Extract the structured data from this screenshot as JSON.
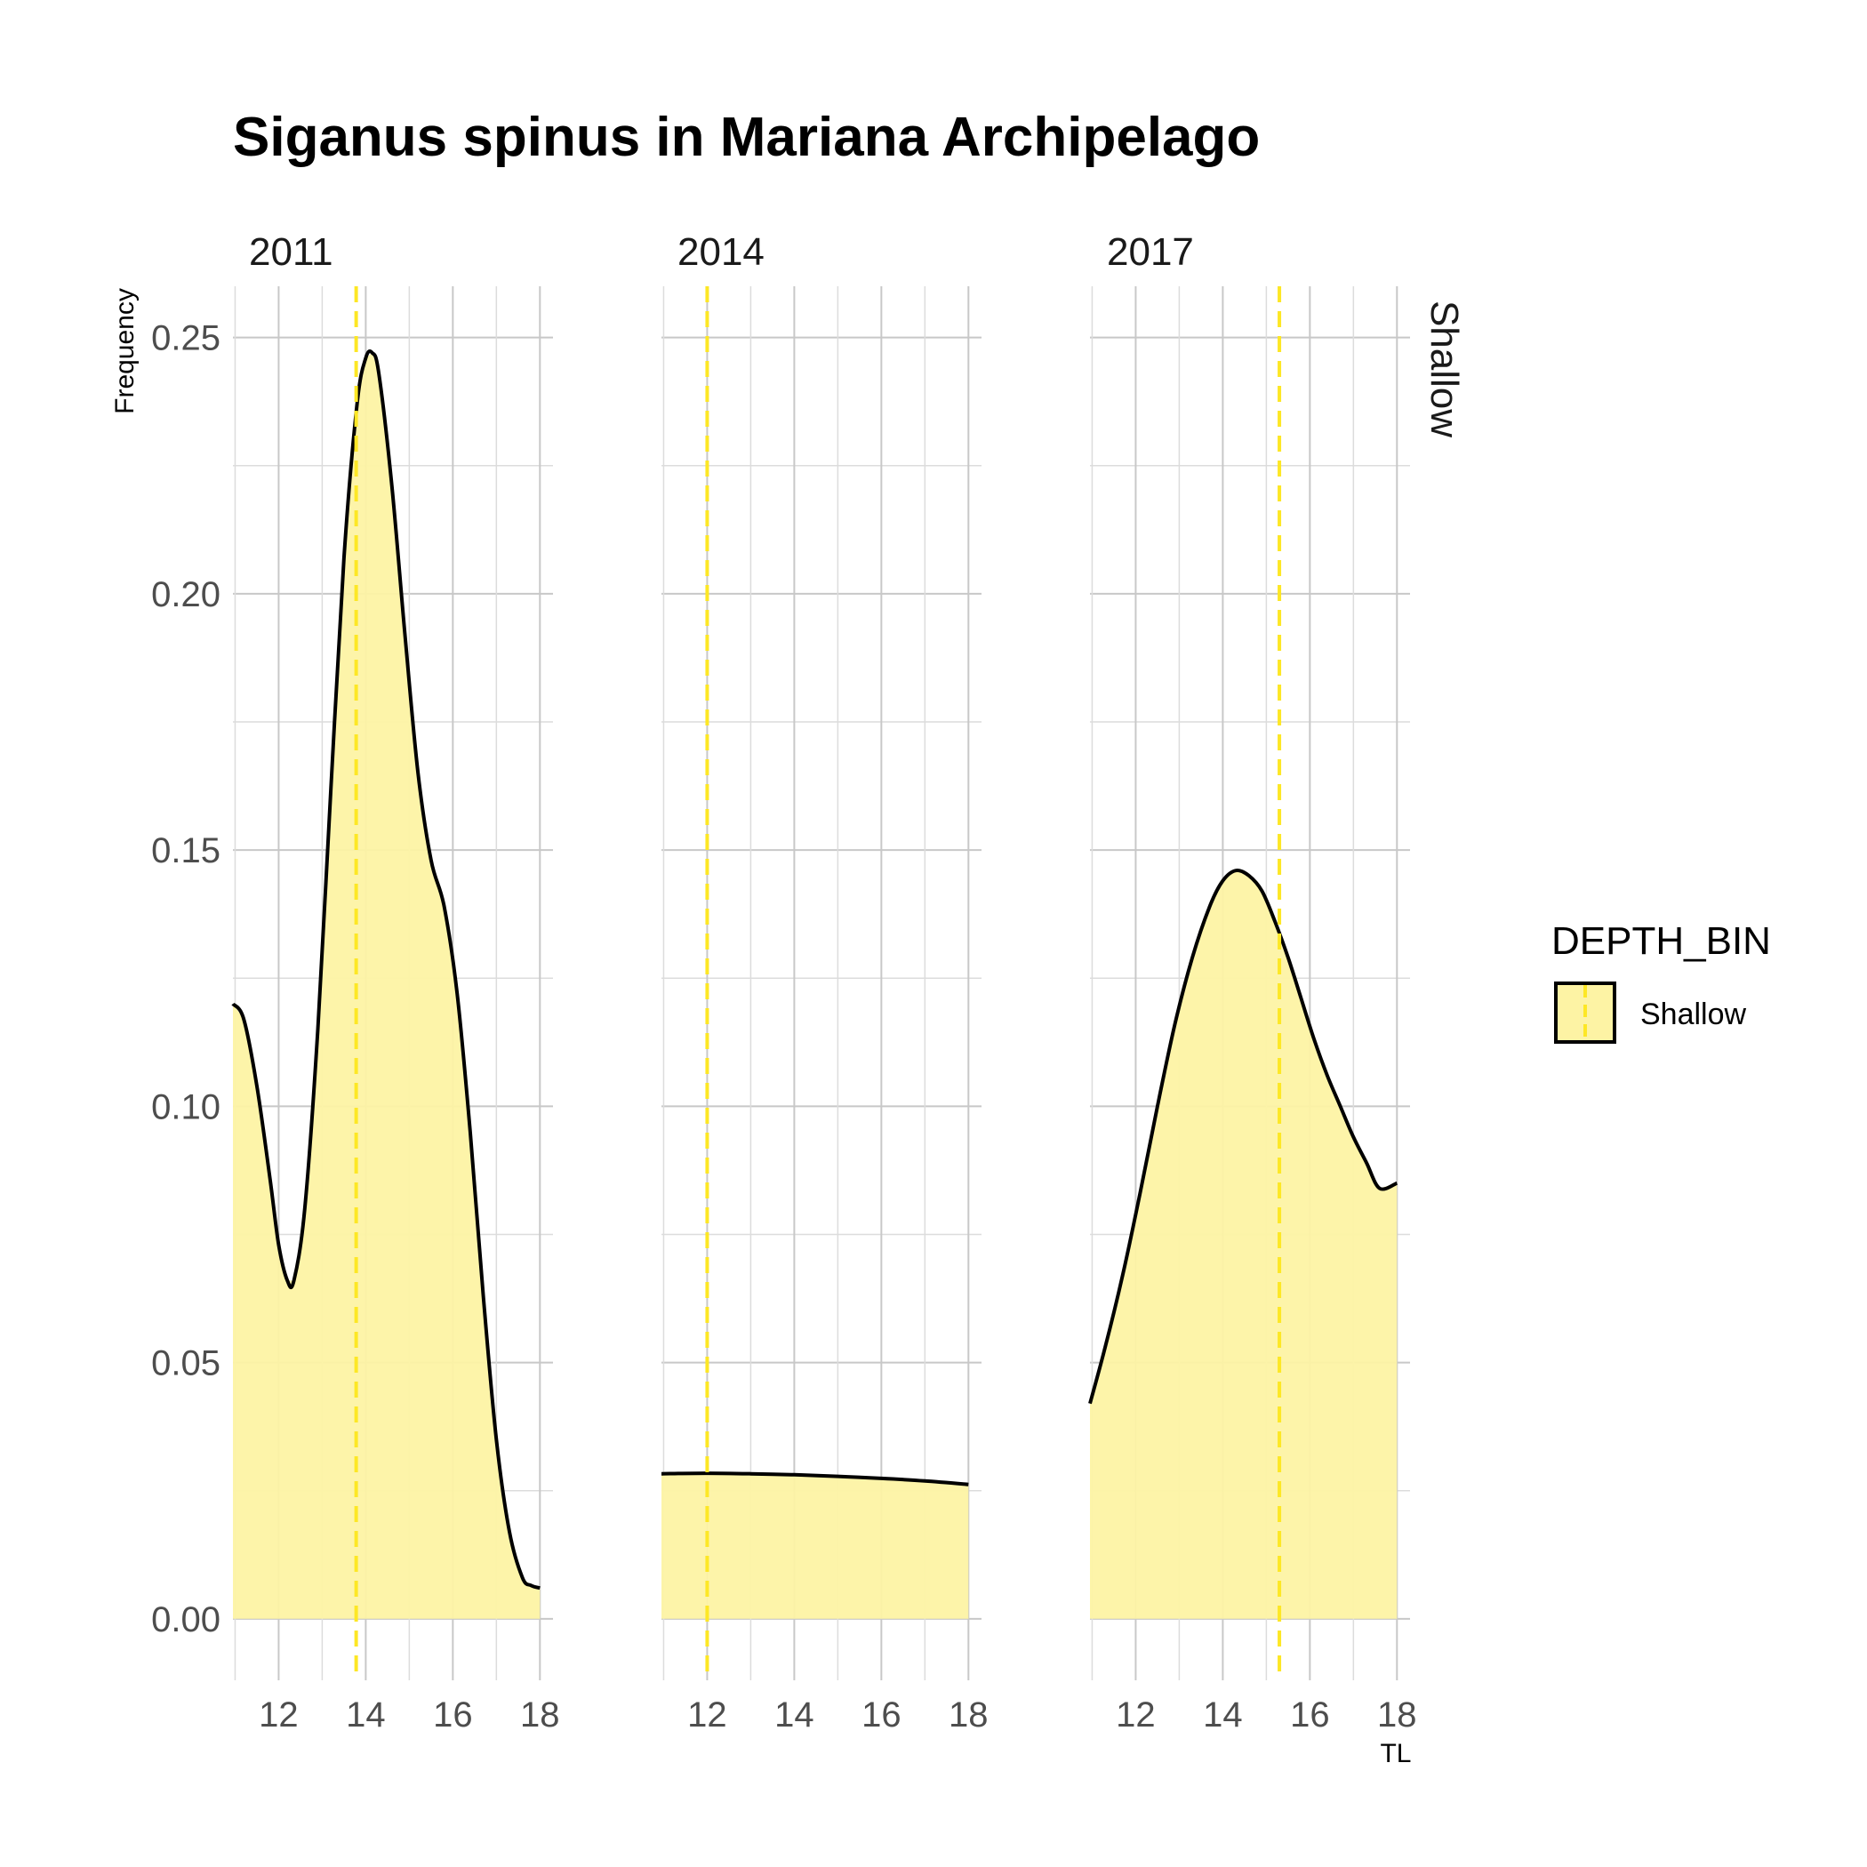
{
  "chart_data": {
    "type": "area",
    "title": "Siganus spinus in Mariana Archipelago",
    "xlabel": "TL",
    "ylabel": "Frequency",
    "row_strip": "Shallow",
    "xlim": [
      10.95,
      18.3
    ],
    "ylim": [
      -0.012,
      0.26
    ],
    "x_ticks": [
      12,
      14,
      16,
      18
    ],
    "y_ticks": [
      "0.00",
      "0.05",
      "0.10",
      "0.15",
      "0.20",
      "0.25"
    ],
    "y_tick_values": [
      0,
      0.05,
      0.1,
      0.15,
      0.2,
      0.25
    ],
    "grid": true,
    "fill_color": "#fdf3a4",
    "line_color": "#000000",
    "mean_line_color": "#fde725",
    "legend": {
      "title": "DEPTH_BIN",
      "position": "right",
      "items": [
        {
          "label": "Shallow",
          "color": "#fdf3a4"
        }
      ]
    },
    "panels": [
      {
        "label": "2011",
        "mean_line": 13.78,
        "x": [
          10.95,
          11.2,
          11.5,
          11.8,
          12.0,
          12.2,
          12.35,
          12.6,
          12.9,
          13.2,
          13.5,
          13.8,
          14.0,
          14.15,
          14.3,
          14.6,
          14.9,
          15.2,
          15.5,
          15.8,
          16.1,
          16.4,
          16.7,
          17.0,
          17.3,
          17.6,
          17.8,
          18.0
        ],
        "y": [
          0.12,
          0.117,
          0.104,
          0.086,
          0.073,
          0.066,
          0.066,
          0.08,
          0.115,
          0.162,
          0.207,
          0.237,
          0.246,
          0.247,
          0.243,
          0.221,
          0.192,
          0.165,
          0.148,
          0.139,
          0.122,
          0.095,
          0.063,
          0.035,
          0.017,
          0.008,
          0.0065,
          0.006
        ]
      },
      {
        "label": "2014",
        "mean_line": 12.0,
        "x": [
          10.95,
          12.0,
          13.0,
          14.0,
          15.0,
          16.0,
          17.0,
          18.0
        ],
        "y": [
          0.0283,
          0.0284,
          0.0283,
          0.0281,
          0.0278,
          0.0274,
          0.0269,
          0.0262
        ]
      },
      {
        "label": "2017",
        "mean_line": 15.3,
        "x": [
          10.95,
          11.3,
          11.7,
          12.1,
          12.5,
          12.9,
          13.3,
          13.7,
          14.0,
          14.3,
          14.6,
          14.9,
          15.2,
          15.5,
          15.8,
          16.1,
          16.4,
          16.7,
          17.0,
          17.3,
          17.6,
          18.0
        ],
        "y": [
          0.042,
          0.053,
          0.067,
          0.083,
          0.1,
          0.116,
          0.129,
          0.139,
          0.144,
          0.146,
          0.145,
          0.142,
          0.136,
          0.129,
          0.121,
          0.113,
          0.106,
          0.1,
          0.094,
          0.089,
          0.084,
          0.085
        ]
      }
    ]
  }
}
